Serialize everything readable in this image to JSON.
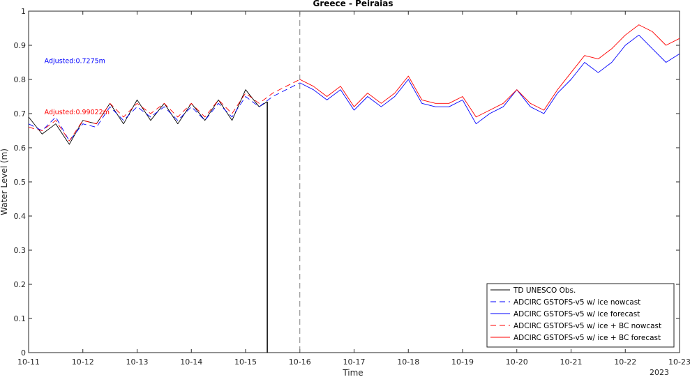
{
  "chart_data": {
    "type": "line",
    "title": "Greece - Peiraias",
    "xlabel": "Time",
    "ylabel": "Water Level (m)",
    "x_tick_labels": [
      "10-11",
      "10-12",
      "10-13",
      "10-14",
      "10-15",
      "10-16",
      "10-17",
      "10-18",
      "10-19",
      "10-20",
      "10-21",
      "10-22",
      "10-23"
    ],
    "x_secondary_label": "2023",
    "xlim": [
      "2023-10-11",
      "2023-10-23"
    ],
    "ylim": [
      0,
      1
    ],
    "y_ticks": [
      0,
      0.1,
      0.2,
      0.3,
      0.4,
      0.5,
      0.6,
      0.7,
      0.8,
      0.9,
      1
    ],
    "y_tick_labels": [
      "0",
      "0.1",
      "0.2",
      "0.3",
      "0.4",
      "0.5",
      "0.6",
      "0.7",
      "0.8",
      "0.9",
      "1"
    ],
    "forecast_start": "2023-10-16",
    "obs_end_drop": {
      "x": "2023-10-15T09:36",
      "y_top": 0.735,
      "y_bottom": 0
    },
    "annotations": [
      {
        "text": "Adjusted:0.7275m",
        "color": "#0000ff",
        "x": "2023-10-11T07:00",
        "y": 0.848
      },
      {
        "text": "Adjusted:0.99022m",
        "color": "#ff0000",
        "x": "2023-10-11T07:00",
        "y": 0.698
      }
    ],
    "legend": {
      "position": "bottom-right",
      "entries": [
        {
          "label": "TD UNESCO Obs.",
          "color": "#000000",
          "dash": "solid"
        },
        {
          "label": "ADCIRC GSTOFS-v5 w/ ice nowcast",
          "color": "#0000ff",
          "dash": "dashed"
        },
        {
          "label": "ADCIRC GSTOFS-v5 w/ ice forecast",
          "color": "#0000ff",
          "dash": "solid"
        },
        {
          "label": "ADCIRC GSTOFS-v5 w/ ice + BC nowcast",
          "color": "#ff0000",
          "dash": "dashed"
        },
        {
          "label": "ADCIRC GSTOFS-v5 w/ ice + BC forecast",
          "color": "#ff0000",
          "dash": "solid"
        }
      ]
    },
    "series": [
      {
        "name": "TD UNESCO Obs.",
        "color": "#000000",
        "x": [
          "2023-10-11T00:00",
          "2023-10-11T06:00",
          "2023-10-11T12:00",
          "2023-10-11T18:00",
          "2023-10-12T00:00",
          "2023-10-12T06:00",
          "2023-10-12T12:00",
          "2023-10-12T18:00",
          "2023-10-13T00:00",
          "2023-10-13T06:00",
          "2023-10-13T12:00",
          "2023-10-13T18:00",
          "2023-10-14T00:00",
          "2023-10-14T06:00",
          "2023-10-14T12:00",
          "2023-10-14T18:00",
          "2023-10-15T00:00",
          "2023-10-15T06:00",
          "2023-10-15T09:36"
        ],
        "values": [
          0.69,
          0.64,
          0.67,
          0.61,
          0.68,
          0.67,
          0.73,
          0.67,
          0.74,
          0.68,
          0.73,
          0.67,
          0.73,
          0.68,
          0.74,
          0.68,
          0.77,
          0.72,
          0.735
        ]
      },
      {
        "name": "ADCIRC GSTOFS-v5 w/ ice nowcast",
        "color": "#0000ff",
        "dash": "dashed",
        "x": [
          "2023-10-11T00:00",
          "2023-10-11T06:00",
          "2023-10-11T12:00",
          "2023-10-11T18:00",
          "2023-10-12T00:00",
          "2023-10-12T06:00",
          "2023-10-12T12:00",
          "2023-10-12T18:00",
          "2023-10-13T00:00",
          "2023-10-13T06:00",
          "2023-10-13T12:00",
          "2023-10-13T18:00",
          "2023-10-14T00:00",
          "2023-10-14T06:00",
          "2023-10-14T12:00",
          "2023-10-14T18:00",
          "2023-10-15T00:00",
          "2023-10-15T06:00",
          "2023-10-15T12:00",
          "2023-10-15T18:00",
          "2023-10-16T00:00"
        ],
        "values": [
          0.67,
          0.65,
          0.69,
          0.62,
          0.67,
          0.66,
          0.72,
          0.68,
          0.72,
          0.69,
          0.72,
          0.68,
          0.72,
          0.68,
          0.73,
          0.69,
          0.75,
          0.72,
          0.75,
          0.77,
          0.79
        ]
      },
      {
        "name": "ADCIRC GSTOFS-v5 w/ ice forecast",
        "color": "#0000ff",
        "dash": "solid",
        "x": [
          "2023-10-16T00:00",
          "2023-10-16T06:00",
          "2023-10-16T12:00",
          "2023-10-16T18:00",
          "2023-10-17T00:00",
          "2023-10-17T06:00",
          "2023-10-17T12:00",
          "2023-10-17T18:00",
          "2023-10-18T00:00",
          "2023-10-18T06:00",
          "2023-10-18T12:00",
          "2023-10-18T18:00",
          "2023-10-19T00:00",
          "2023-10-19T06:00",
          "2023-10-19T12:00",
          "2023-10-19T18:00",
          "2023-10-20T00:00",
          "2023-10-20T06:00",
          "2023-10-20T12:00",
          "2023-10-20T18:00",
          "2023-10-21T00:00",
          "2023-10-21T06:00",
          "2023-10-21T12:00",
          "2023-10-21T18:00",
          "2023-10-22T00:00",
          "2023-10-22T06:00",
          "2023-10-22T12:00",
          "2023-10-22T18:00",
          "2023-10-23T00:00"
        ],
        "values": [
          0.79,
          0.77,
          0.74,
          0.77,
          0.71,
          0.75,
          0.72,
          0.75,
          0.8,
          0.73,
          0.72,
          0.72,
          0.74,
          0.67,
          0.7,
          0.72,
          0.77,
          0.72,
          0.7,
          0.76,
          0.8,
          0.85,
          0.82,
          0.85,
          0.9,
          0.93,
          0.89,
          0.85,
          0.875
        ]
      },
      {
        "name": "ADCIRC GSTOFS-v5 w/ ice + BC nowcast",
        "color": "#ff0000",
        "dash": "dashed",
        "x": [
          "2023-10-11T00:00",
          "2023-10-11T06:00",
          "2023-10-11T12:00",
          "2023-10-11T18:00",
          "2023-10-12T00:00",
          "2023-10-12T06:00",
          "2023-10-12T12:00",
          "2023-10-12T18:00",
          "2023-10-13T00:00",
          "2023-10-13T06:00",
          "2023-10-13T12:00",
          "2023-10-13T18:00",
          "2023-10-14T00:00",
          "2023-10-14T06:00",
          "2023-10-14T12:00",
          "2023-10-14T18:00",
          "2023-10-15T00:00",
          "2023-10-15T06:00",
          "2023-10-15T12:00",
          "2023-10-15T18:00",
          "2023-10-16T00:00"
        ],
        "values": [
          0.66,
          0.65,
          0.68,
          0.62,
          0.68,
          0.67,
          0.73,
          0.69,
          0.73,
          0.7,
          0.73,
          0.69,
          0.73,
          0.69,
          0.74,
          0.7,
          0.76,
          0.73,
          0.76,
          0.78,
          0.8
        ]
      },
      {
        "name": "ADCIRC GSTOFS-v5 w/ ice + BC forecast",
        "color": "#ff0000",
        "dash": "solid",
        "x": [
          "2023-10-16T00:00",
          "2023-10-16T06:00",
          "2023-10-16T12:00",
          "2023-10-16T18:00",
          "2023-10-17T00:00",
          "2023-10-17T06:00",
          "2023-10-17T12:00",
          "2023-10-17T18:00",
          "2023-10-18T00:00",
          "2023-10-18T06:00",
          "2023-10-18T12:00",
          "2023-10-18T18:00",
          "2023-10-19T00:00",
          "2023-10-19T06:00",
          "2023-10-19T12:00",
          "2023-10-19T18:00",
          "2023-10-20T00:00",
          "2023-10-20T06:00",
          "2023-10-20T12:00",
          "2023-10-20T18:00",
          "2023-10-21T00:00",
          "2023-10-21T06:00",
          "2023-10-21T12:00",
          "2023-10-21T18:00",
          "2023-10-22T00:00",
          "2023-10-22T06:00",
          "2023-10-22T12:00",
          "2023-10-22T18:00",
          "2023-10-23T00:00"
        ],
        "values": [
          0.8,
          0.78,
          0.75,
          0.78,
          0.72,
          0.76,
          0.73,
          0.76,
          0.81,
          0.74,
          0.73,
          0.73,
          0.75,
          0.69,
          0.71,
          0.73,
          0.77,
          0.73,
          0.71,
          0.77,
          0.82,
          0.87,
          0.86,
          0.89,
          0.93,
          0.96,
          0.94,
          0.9,
          0.92
        ]
      }
    ]
  }
}
